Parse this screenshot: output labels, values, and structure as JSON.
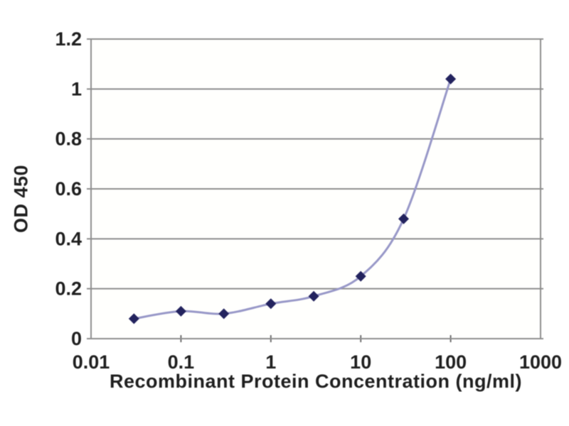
{
  "chart_data": {
    "type": "line",
    "title": "",
    "xlabel": "Recombinant Protein Concentration (ng/ml)",
    "ylabel": "OD 450",
    "x_scale": "log",
    "y_scale": "linear",
    "xlim": [
      0.01,
      1000
    ],
    "ylim": [
      0,
      1.2
    ],
    "x_tick_values": [
      0.01,
      0.1,
      1,
      10,
      100,
      1000
    ],
    "x_tick_labels": [
      "0.01",
      "0.1",
      "1",
      "10",
      "100",
      "1000"
    ],
    "y_tick_values": [
      0,
      0.2,
      0.4,
      0.6,
      0.8,
      1,
      1.2
    ],
    "y_tick_labels": [
      "0",
      "0.2",
      "0.4",
      "0.6",
      "0.8",
      "1",
      "1.2"
    ],
    "grid": "horizontal",
    "legend": "none",
    "marker": "diamond",
    "line_style": "smooth",
    "series": [
      {
        "name": "OD 450",
        "x": [
          0.03,
          0.1,
          0.3,
          1,
          3,
          10,
          30,
          100
        ],
        "y": [
          0.08,
          0.11,
          0.1,
          0.14,
          0.17,
          0.25,
          0.48,
          1.04
        ]
      }
    ]
  },
  "colors": {
    "background": "#ffffff",
    "plot_background": "#fffffd",
    "gridline": "#8e8e8e",
    "axis_border": "#8e8e8e",
    "tick": "#6f6f6f",
    "line": "#9898c8",
    "marker": "#23235e",
    "text": "#1f1f1f"
  }
}
